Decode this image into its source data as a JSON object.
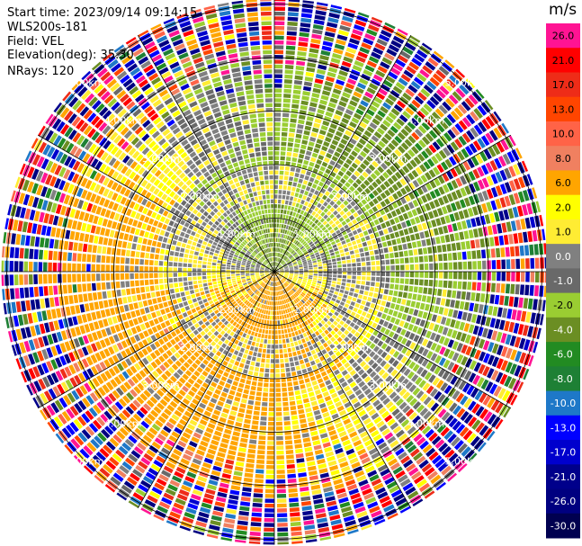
{
  "header": {
    "start_time": "Start time: 2023/09/14 09:14:15",
    "site": "WLS200s-181",
    "field": "Field: VEL",
    "elevation": "Elevation(deg): 35.30",
    "nrays": "NRays: 120"
  },
  "colorbar": {
    "unit": "m/s",
    "ticks": [
      "26.0",
      "21.0",
      "17.0",
      "13.0",
      "10.0",
      "8.0",
      "6.0",
      "2.0",
      "1.0",
      "0.0",
      "-1.0",
      "-2.0",
      "-4.0",
      "-6.0",
      "-8.0",
      "-10.0",
      "-13.0",
      "-17.0",
      "-21.0",
      "-26.0",
      "-30.0"
    ],
    "colors": [
      "#ff1493",
      "#ff0000",
      "#ee2c18",
      "#ff4500",
      "#ff6347",
      "#f08060",
      "#ffa500",
      "#ffff00",
      "#ffec33",
      "#808080",
      "#696969",
      "#9acd32",
      "#6b8e23",
      "#228b22",
      "#1e8035",
      "#1e78c8",
      "#0000ff",
      "#0000cd",
      "#00008b",
      "#000080",
      "#000050"
    ]
  },
  "chart_data": {
    "type": "heatmap",
    "projection": "ppi-polar",
    "field": "VEL",
    "units": "m/s",
    "nrays": 120,
    "range_rings_km": [
      1.0,
      2.0,
      3.0,
      4.0,
      5.0
    ],
    "ring_labels": [
      "1.00km",
      "2.00km",
      "3.00km",
      "4.00km",
      "5.00km"
    ],
    "max_range_km": 5.1,
    "spokes_deg": [
      0,
      30,
      60,
      90,
      120,
      150,
      180,
      210,
      240,
      270,
      300,
      330
    ],
    "velocity_structure": [
      {
        "range_km": [
          0.0,
          1.0
        ],
        "dominant": "toward (-2 to -6) north, away (+2 to +6) south"
      },
      {
        "range_km": [
          1.0,
          2.2
        ],
        "dominant": "near zero (-1 to 1) ring with +2 south / -4 north"
      },
      {
        "range_km": [
          2.2,
          3.3
        ],
        "dominant": "+2 to +6 west-south, -2 to -6 north-east"
      },
      {
        "range_km": [
          3.3,
          4.2
        ],
        "dominant": "mixed signal, noise increasing"
      },
      {
        "range_km": [
          4.2,
          5.1
        ],
        "dominant": "noise / random values"
      }
    ]
  }
}
